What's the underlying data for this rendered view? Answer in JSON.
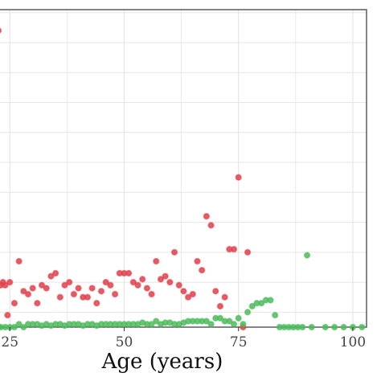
{
  "chart_data": {
    "type": "scatter",
    "title": "",
    "xlabel": "Age (years)",
    "ylabel": "",
    "xlim": [
      22.5,
      103
    ],
    "ylim": [
      0,
      1.06
    ],
    "x_ticks": [
      25,
      50,
      75,
      100
    ],
    "y_gridlines": [
      0.05,
      0.15,
      0.25,
      0.35,
      0.45,
      0.55,
      0.65,
      0.75,
      0.85,
      0.95,
      1.05
    ],
    "grid": true,
    "legend": "none",
    "colors": {
      "series_red": "#e0404a",
      "series_green": "#4cbb5a",
      "grid": "#e6e6e6",
      "frame": "#333333"
    },
    "series": [
      {
        "color_key": "series_red",
        "points": [
          [
            22.5,
            0.99
          ],
          [
            23,
            0.14
          ],
          [
            23.5,
            0.15
          ],
          [
            24,
            0.14
          ],
          [
            24.5,
            0.04
          ],
          [
            25,
            0.15
          ],
          [
            26,
            0.08
          ],
          [
            27,
            0.22
          ],
          [
            28,
            0.12
          ],
          [
            29,
            0.11
          ],
          [
            30,
            0.13
          ],
          [
            31,
            0.08
          ],
          [
            32,
            0.14
          ],
          [
            33,
            0.13
          ],
          [
            34,
            0.17
          ],
          [
            35,
            0.18
          ],
          [
            36,
            0.1
          ],
          [
            37,
            0.14
          ],
          [
            38,
            0.15
          ],
          [
            39,
            0.11
          ],
          [
            40,
            0.13
          ],
          [
            41,
            0.1
          ],
          [
            42,
            0.1
          ],
          [
            43,
            0.13
          ],
          [
            44,
            0.08
          ],
          [
            45,
            0.12
          ],
          [
            46,
            0.15
          ],
          [
            47,
            0.14
          ],
          [
            48,
            0.11
          ],
          [
            49,
            0.18
          ],
          [
            50,
            0.18
          ],
          [
            51,
            0.18
          ],
          [
            52,
            0.15
          ],
          [
            53,
            0.14
          ],
          [
            54,
            0.16
          ],
          [
            55,
            0.13
          ],
          [
            56,
            0.11
          ],
          [
            57,
            0.22
          ],
          [
            58,
            0.16
          ],
          [
            59,
            0.17
          ],
          [
            60,
            0.15
          ],
          [
            61,
            0.25
          ],
          [
            62,
            0.14
          ],
          [
            63,
            0.12
          ],
          [
            64,
            0.1
          ],
          [
            65,
            0.11
          ],
          [
            66,
            0.22
          ],
          [
            67,
            0.19
          ],
          [
            68,
            0.37
          ],
          [
            69,
            0.34
          ],
          [
            70,
            0.12
          ],
          [
            71,
            0.07
          ],
          [
            72,
            0.1
          ],
          [
            73,
            0.26
          ],
          [
            74,
            0.26
          ],
          [
            75,
            0.5
          ],
          [
            76,
            0.0
          ],
          [
            77,
            0.25
          ]
        ]
      },
      {
        "color_key": "series_green",
        "points": [
          [
            22.5,
            0.0
          ],
          [
            23,
            0.0
          ],
          [
            24,
            0.0
          ],
          [
            25,
            0.0
          ],
          [
            26,
            0.0
          ],
          [
            27,
            0.01
          ],
          [
            28,
            0.0
          ],
          [
            29,
            0.01
          ],
          [
            30,
            0.01
          ],
          [
            31,
            0.01
          ],
          [
            32,
            0.005
          ],
          [
            33,
            0.01
          ],
          [
            34,
            0.005
          ],
          [
            35,
            0.01
          ],
          [
            36,
            0.01
          ],
          [
            37,
            0.005
          ],
          [
            38,
            0.01
          ],
          [
            39,
            0.01
          ],
          [
            40,
            0.01
          ],
          [
            41,
            0.005
          ],
          [
            42,
            0.01
          ],
          [
            43,
            0.01
          ],
          [
            44,
            0.005
          ],
          [
            45,
            0.01
          ],
          [
            46,
            0.01
          ],
          [
            47,
            0.01
          ],
          [
            48,
            0.01
          ],
          [
            49,
            0.01
          ],
          [
            50,
            0.01
          ],
          [
            51,
            0.01
          ],
          [
            52,
            0.01
          ],
          [
            53,
            0.01
          ],
          [
            54,
            0.015
          ],
          [
            55,
            0.01
          ],
          [
            56,
            0.01
          ],
          [
            57,
            0.02
          ],
          [
            58,
            0.01
          ],
          [
            59,
            0.015
          ],
          [
            60,
            0.015
          ],
          [
            61,
            0.01
          ],
          [
            62,
            0.01
          ],
          [
            63,
            0.015
          ],
          [
            64,
            0.02
          ],
          [
            65,
            0.02
          ],
          [
            66,
            0.02
          ],
          [
            67,
            0.02
          ],
          [
            68,
            0.02
          ],
          [
            69,
            0.01
          ],
          [
            70,
            0.03
          ],
          [
            71,
            0.03
          ],
          [
            72,
            0.02
          ],
          [
            73,
            0.02
          ],
          [
            74,
            0.01
          ],
          [
            75,
            0.03
          ],
          [
            76,
            0.01
          ],
          [
            77,
            0.05
          ],
          [
            78,
            0.07
          ],
          [
            79,
            0.08
          ],
          [
            80,
            0.08
          ],
          [
            81,
            0.09
          ],
          [
            82,
            0.09
          ],
          [
            83,
            0.04
          ],
          [
            84,
            0.0
          ],
          [
            85,
            0.0
          ],
          [
            86,
            0.0
          ],
          [
            87,
            0.0
          ],
          [
            88,
            0.0
          ],
          [
            89,
            0.0
          ],
          [
            90,
            0.24
          ],
          [
            91,
            0.0
          ],
          [
            94,
            0.0
          ],
          [
            96,
            0.0
          ],
          [
            98,
            0.0
          ],
          [
            100,
            0.0
          ],
          [
            102,
            0.0
          ]
        ]
      }
    ]
  }
}
